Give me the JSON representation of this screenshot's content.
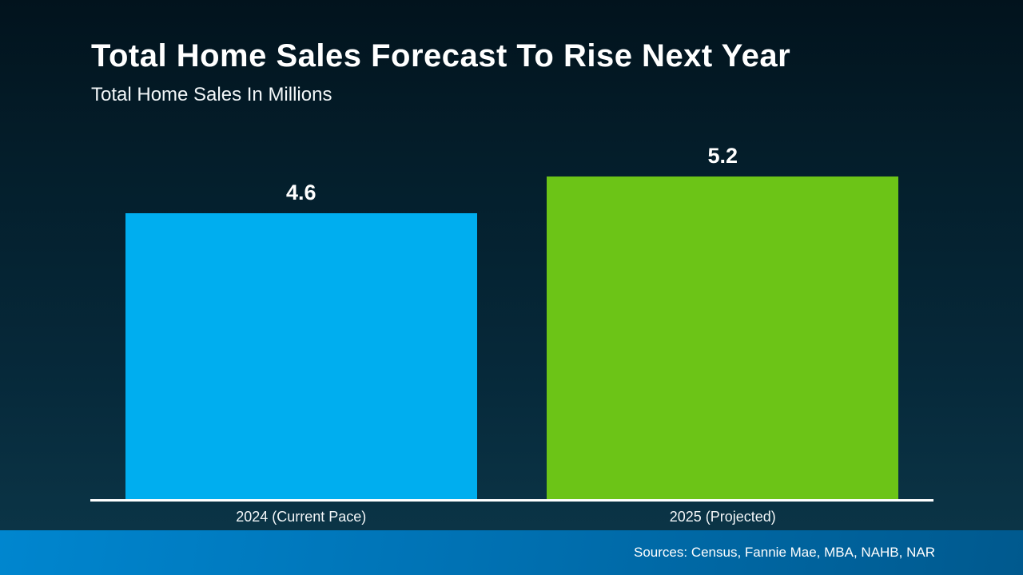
{
  "header": {
    "title": "Total Home Sales Forecast To Rise Next Year",
    "subtitle": "Total Home Sales In Millions"
  },
  "footer": {
    "sources": "Sources: Census, Fannie Mae, MBA, NAHB, NAR"
  },
  "colors": {
    "bar_2024": "#00AEEF",
    "bar_2025": "#6CC417",
    "axis_line": "#FFFFFF",
    "background_top": "#02131D",
    "background_bottom": "#0D3850",
    "footer_left": "#0086CF",
    "footer_right": "#00598E"
  },
  "chart_data": {
    "type": "bar",
    "title": "Total Home Sales Forecast To Rise Next Year",
    "subtitle": "Total Home Sales In Millions",
    "categories": [
      "2024 (Current Pace)",
      "2025 (Projected)"
    ],
    "values": [
      4.6,
      5.2
    ],
    "value_labels": [
      "4.6",
      "5.2"
    ],
    "bar_colors": [
      "#00AEEF",
      "#6CC417"
    ],
    "xlabel": "",
    "ylabel": "Total Home Sales In Millions",
    "ylim": [
      0,
      5.4
    ],
    "grid": false,
    "legend": false
  }
}
